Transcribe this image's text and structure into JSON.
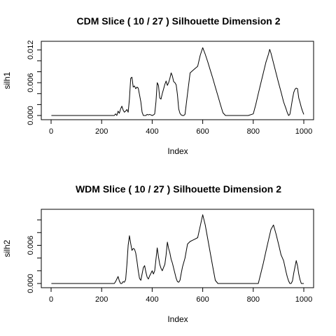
{
  "chart_data": [
    {
      "type": "line",
      "title": "CDM Slice ( 10 / 27 )  Silhouette Dimension 2",
      "xlabel": "Index",
      "ylabel": "silh1",
      "xlim": [
        0,
        1000
      ],
      "ylim": [
        0,
        0.013
      ],
      "xticks": [
        0,
        200,
        400,
        600,
        800,
        1000
      ],
      "xtick_labels": [
        "0",
        "200",
        "400",
        "600",
        "800",
        "1000"
      ],
      "yticks": [
        0,
        0.002,
        0.004,
        0.006,
        0.008,
        0.01,
        0.012
      ],
      "ytick_labels": [
        "0.000",
        "",
        "0.006",
        "",
        "0.012"
      ],
      "ytick_label_values": [
        0,
        0.003,
        0.006,
        0.009,
        0.012
      ],
      "grid": false,
      "series": [
        {
          "x": [
            1,
            250,
            255,
            260,
            265,
            270,
            275,
            280,
            285,
            290,
            295,
            300,
            305,
            310,
            315,
            320,
            325,
            330,
            335,
            340,
            345,
            350,
            355,
            360,
            365,
            370,
            375,
            380,
            385,
            390,
            395,
            400,
            405,
            410,
            415,
            420,
            425,
            430,
            435,
            440,
            445,
            450,
            455,
            460,
            465,
            470,
            475,
            480,
            485,
            490,
            495,
            500,
            505,
            510,
            515,
            520,
            525,
            530,
            540,
            550,
            560,
            570,
            580,
            590,
            600,
            610,
            620,
            630,
            640,
            650,
            660,
            670,
            680,
            690,
            700,
            720,
            740,
            760,
            780,
            800,
            810,
            820,
            830,
            840,
            850,
            860,
            865,
            870,
            880,
            890,
            900,
            910,
            920,
            930,
            935,
            940,
            945,
            950,
            955,
            960,
            965,
            970,
            975,
            980,
            985,
            990,
            995,
            1000
          ],
          "y": [
            0,
            0,
            0.0003,
            0,
            0.0008,
            0.0004,
            0.0012,
            0.0017,
            0.001,
            0.0006,
            0.0008,
            0.0011,
            0.0006,
            0.003,
            0.0068,
            0.007,
            0.0052,
            0.0054,
            0.0049,
            0.0052,
            0.005,
            0.0038,
            0.0025,
            0.0006,
            0,
            0,
            0,
            0.0002,
            0.0001,
            0.0002,
            0.0001,
            0,
            0.0001,
            0.0003,
            0.0025,
            0.006,
            0.0055,
            0.0032,
            0.003,
            0.004,
            0.0048,
            0.0057,
            0.0063,
            0.0055,
            0.006,
            0.0068,
            0.0078,
            0.0072,
            0.0062,
            0.006,
            0.0056,
            0.0038,
            0.0012,
            0.0004,
            0.0001,
            0,
            0,
            0.0002,
            0.004,
            0.0078,
            0.0082,
            0.0086,
            0.009,
            0.011,
            0.0124,
            0.0112,
            0.0098,
            0.0083,
            0.0068,
            0.0052,
            0.0036,
            0.002,
            0.0005,
            0,
            0,
            0,
            0,
            0,
            0,
            0.0003,
            0.002,
            0.004,
            0.0059,
            0.0078,
            0.0097,
            0.0112,
            0.0121,
            0.0114,
            0.0096,
            0.0078,
            0.006,
            0.0043,
            0.0025,
            0.0012,
            0.0005,
            0,
            0.0002,
            0.0015,
            0.003,
            0.0042,
            0.0048,
            0.005,
            0.0049,
            0.0032,
            0.0024,
            0.0015,
            0.0008,
            0.0002
          ]
        }
      ]
    },
    {
      "type": "line",
      "title": "WDM Slice ( 10 / 27 )  Silhouette Dimension 2",
      "xlabel": "Index",
      "ylabel": "silh2",
      "xlim": [
        0,
        1000
      ],
      "ylim": [
        0,
        0.0115
      ],
      "xticks": [
        0,
        200,
        400,
        600,
        800,
        1000
      ],
      "xtick_labels": [
        "0",
        "200",
        "400",
        "600",
        "800",
        "1000"
      ],
      "yticks": [
        0,
        0.002,
        0.004,
        0.006,
        0.008,
        0.01
      ],
      "ytick_labels": [
        "0.000",
        "",
        "0.006",
        ""
      ],
      "ytick_label_values": [
        0,
        0.002,
        0.006,
        0.008
      ],
      "grid": false,
      "series": [
        {
          "x": [
            1,
            250,
            255,
            260,
            265,
            270,
            275,
            280,
            285,
            290,
            295,
            300,
            305,
            310,
            315,
            320,
            325,
            330,
            335,
            340,
            345,
            350,
            355,
            360,
            365,
            370,
            375,
            380,
            385,
            390,
            395,
            400,
            405,
            410,
            415,
            420,
            425,
            430,
            435,
            440,
            445,
            450,
            455,
            460,
            465,
            470,
            475,
            480,
            485,
            490,
            495,
            500,
            505,
            510,
            515,
            520,
            530,
            540,
            550,
            560,
            570,
            580,
            590,
            600,
            610,
            620,
            630,
            640,
            650,
            660,
            670,
            680,
            700,
            740,
            780,
            820,
            830,
            840,
            850,
            860,
            870,
            880,
            890,
            900,
            910,
            920,
            930,
            935,
            940,
            945,
            950,
            955,
            960,
            965,
            970,
            975,
            980,
            985,
            990,
            1000
          ],
          "y": [
            0,
            0,
            0.0003,
            0.0007,
            0.0011,
            0.0004,
            0,
            0,
            0.0003,
            0.0002,
            0.0006,
            0.003,
            0.006,
            0.0075,
            0.0063,
            0.0052,
            0.0055,
            0.0054,
            0.0048,
            0.0035,
            0.002,
            0.0008,
            0.0005,
            0.0015,
            0.0025,
            0.0028,
            0.0018,
            0.001,
            0.0007,
            0.0012,
            0.0016,
            0.002,
            0.0015,
            0.002,
            0.0038,
            0.0056,
            0.0042,
            0.003,
            0.0024,
            0.002,
            0.0025,
            0.003,
            0.0045,
            0.0065,
            0.0055,
            0.0048,
            0.0038,
            0.0032,
            0.0024,
            0.0016,
            0.0008,
            0.0003,
            0.0002,
            0.0005,
            0.0016,
            0.0026,
            0.004,
            0.0062,
            0.0066,
            0.0068,
            0.007,
            0.0072,
            0.009,
            0.0108,
            0.0092,
            0.007,
            0.0048,
            0.0026,
            0.0005,
            0,
            0,
            0,
            0,
            0,
            0,
            0,
            0.0016,
            0.0032,
            0.005,
            0.0068,
            0.0085,
            0.0092,
            0.0078,
            0.0062,
            0.0045,
            0.0036,
            0.0018,
            0.001,
            0.0004,
            0,
            0,
            0.0004,
            0.0016,
            0.0026,
            0.0036,
            0.0028,
            0.0015,
            0.0006,
            0,
            0
          ]
        }
      ]
    }
  ]
}
